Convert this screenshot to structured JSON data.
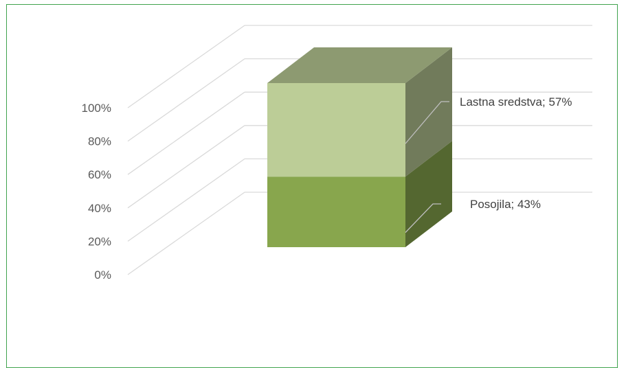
{
  "chart_data": {
    "type": "bar",
    "subtype": "3d-stacked-100-percent",
    "title": "",
    "xlabel": "",
    "ylabel": "",
    "categories": [
      ""
    ],
    "series": [
      {
        "name": "Posojila",
        "values": [
          43
        ],
        "color": "#88a64d"
      },
      {
        "name": "Lastna sredstva",
        "values": [
          57
        ],
        "color": "#bccd97"
      }
    ],
    "data_labels": [
      {
        "series": "Posojila",
        "text": "Posojila; 43%"
      },
      {
        "series": "Lastna sredstva",
        "text": "Lastna sredstva; 57%"
      }
    ],
    "y_ticks": [
      "0%",
      "20%",
      "40%",
      "60%",
      "80%",
      "100%"
    ],
    "ylim": [
      0,
      100
    ],
    "grid": true,
    "legend": "none"
  },
  "colors": {
    "frame_border": "#3fa34d",
    "gridline": "#d9d9d9",
    "tick_text": "#595959"
  }
}
